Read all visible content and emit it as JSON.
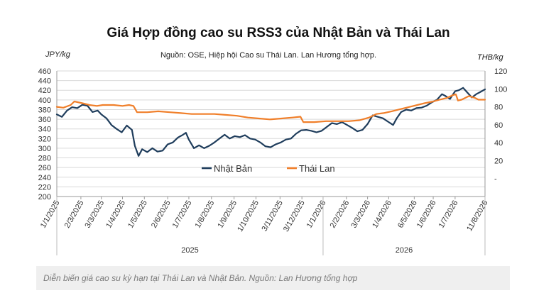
{
  "caption": "Diễn biến giá cao su kỳ hạn tại Thái Lan và Nhật Bản. Nguồn: Lan Hương tổng hợp",
  "chart_data": {
    "type": "line",
    "title": "Giá Hợp đồng cao su RSS3 của Nhật Bản và Thái Lan",
    "subtitle": "Nguồn: OSE, Hiệp hội Cao su Thái Lan. Lan Hương tổng hợp.",
    "ylabel_left": "JPY/kg",
    "ylabel_right": "THB/kg",
    "y_left_range": [
      200,
      460
    ],
    "y_left_ticks": [
      "460",
      "440",
      "420",
      "400",
      "380",
      "360",
      "340",
      "320",
      "300",
      "280",
      "260",
      "240",
      "220",
      "200"
    ],
    "y_right_range": [
      -20,
      120
    ],
    "y_right_ticks": [
      "120",
      "100",
      "80",
      "60",
      "40",
      "20",
      "-"
    ],
    "x_range": [
      "2025-01-01",
      "2026-08-11"
    ],
    "x_ticks": [
      "1/1/2025",
      "2/3/2025",
      "3/3/2025",
      "1/4/2025",
      "1/5/2025",
      "2/6/2025",
      "1/7/2025",
      "1/8/2025",
      "1/9/2025",
      "1/10/2025",
      "3/11/2025",
      "3/12/2025",
      "1/1/2026",
      "2/2/2026",
      "3/3/2026",
      "1/4/2026",
      "6/5/2026",
      "1/6/2026",
      "1/7/2026",
      "11/8/2026"
    ],
    "x_tick_dates": [
      "2025-01-01",
      "2025-02-03",
      "2025-03-03",
      "2025-04-01",
      "2025-05-01",
      "2025-06-02",
      "2025-07-01",
      "2025-08-01",
      "2025-09-01",
      "2025-10-01",
      "2025-11-03",
      "2025-12-03",
      "2026-01-01",
      "2026-02-02",
      "2026-03-03",
      "2026-04-01",
      "2026-05-06",
      "2026-06-01",
      "2026-07-01",
      "2026-08-11"
    ],
    "x_groups": [
      {
        "label": "2025",
        "start": "2025-01-01",
        "end": "2025-12-31"
      },
      {
        "label": "2026",
        "start": "2026-01-01",
        "end": "2026-08-11"
      }
    ],
    "legend_position": "inside-center",
    "series": [
      {
        "name": "Nhật Bản",
        "axis": "left",
        "color": "#1f3d5c",
        "points": [
          [
            "2025-01-01",
            370
          ],
          [
            "2025-01-08",
            365
          ],
          [
            "2025-01-15",
            378
          ],
          [
            "2025-01-22",
            385
          ],
          [
            "2025-01-29",
            383
          ],
          [
            "2025-02-05",
            390
          ],
          [
            "2025-02-12",
            388
          ],
          [
            "2025-02-19",
            375
          ],
          [
            "2025-02-26",
            378
          ],
          [
            "2025-03-03",
            370
          ],
          [
            "2025-03-10",
            362
          ],
          [
            "2025-03-17",
            348
          ],
          [
            "2025-03-24",
            340
          ],
          [
            "2025-03-31",
            333
          ],
          [
            "2025-04-07",
            347
          ],
          [
            "2025-04-14",
            338
          ],
          [
            "2025-04-18",
            305
          ],
          [
            "2025-04-23",
            284
          ],
          [
            "2025-04-28",
            298
          ],
          [
            "2025-05-05",
            292
          ],
          [
            "2025-05-12",
            300
          ],
          [
            "2025-05-19",
            293
          ],
          [
            "2025-05-26",
            295
          ],
          [
            "2025-06-02",
            308
          ],
          [
            "2025-06-09",
            312
          ],
          [
            "2025-06-16",
            322
          ],
          [
            "2025-06-23",
            328
          ],
          [
            "2025-06-27",
            332
          ],
          [
            "2025-07-01",
            318
          ],
          [
            "2025-07-08",
            300
          ],
          [
            "2025-07-15",
            306
          ],
          [
            "2025-07-22",
            300
          ],
          [
            "2025-07-29",
            305
          ],
          [
            "2025-08-05",
            312
          ],
          [
            "2025-08-12",
            320
          ],
          [
            "2025-08-19",
            328
          ],
          [
            "2025-08-26",
            320
          ],
          [
            "2025-09-02",
            325
          ],
          [
            "2025-09-09",
            323
          ],
          [
            "2025-09-16",
            327
          ],
          [
            "2025-09-23",
            320
          ],
          [
            "2025-09-30",
            318
          ],
          [
            "2025-10-07",
            312
          ],
          [
            "2025-10-14",
            304
          ],
          [
            "2025-10-21",
            302
          ],
          [
            "2025-10-28",
            308
          ],
          [
            "2025-11-04",
            312
          ],
          [
            "2025-11-11",
            318
          ],
          [
            "2025-11-18",
            320
          ],
          [
            "2025-11-25",
            330
          ],
          [
            "2025-12-02",
            337
          ],
          [
            "2025-12-09",
            338
          ],
          [
            "2025-12-16",
            336
          ],
          [
            "2025-12-23",
            333
          ],
          [
            "2025-12-30",
            336
          ],
          [
            "2026-01-06",
            344
          ],
          [
            "2026-01-13",
            352
          ],
          [
            "2026-01-20",
            350
          ],
          [
            "2026-01-27",
            354
          ],
          [
            "2026-02-03",
            348
          ],
          [
            "2026-02-10",
            342
          ],
          [
            "2026-02-17",
            335
          ],
          [
            "2026-02-24",
            338
          ],
          [
            "2026-03-03",
            350
          ],
          [
            "2026-03-10",
            368
          ],
          [
            "2026-03-17",
            365
          ],
          [
            "2026-03-24",
            362
          ],
          [
            "2026-03-31",
            355
          ],
          [
            "2026-04-07",
            348
          ],
          [
            "2026-04-12",
            362
          ],
          [
            "2026-04-18",
            375
          ],
          [
            "2026-04-25",
            380
          ],
          [
            "2026-05-02",
            378
          ],
          [
            "2026-05-09",
            383
          ],
          [
            "2026-05-16",
            384
          ],
          [
            "2026-05-23",
            388
          ],
          [
            "2026-05-30",
            395
          ],
          [
            "2026-06-06",
            400
          ],
          [
            "2026-06-13",
            412
          ],
          [
            "2026-06-18",
            408
          ],
          [
            "2026-06-24",
            402
          ],
          [
            "2026-07-01",
            418
          ],
          [
            "2026-07-06",
            420
          ],
          [
            "2026-07-12",
            425
          ],
          [
            "2026-07-18",
            415
          ],
          [
            "2026-07-24",
            405
          ],
          [
            "2026-07-30",
            412
          ],
          [
            "2026-08-04",
            416
          ],
          [
            "2026-08-11",
            422
          ]
        ]
      },
      {
        "name": "Thái Lan",
        "axis": "right",
        "color": "#f07f2a",
        "points": [
          [
            "2025-01-01",
            80
          ],
          [
            "2025-01-10",
            79
          ],
          [
            "2025-01-20",
            82
          ],
          [
            "2025-01-25",
            86
          ],
          [
            "2025-02-05",
            84
          ],
          [
            "2025-02-15",
            82
          ],
          [
            "2025-02-25",
            81
          ],
          [
            "2025-03-05",
            82
          ],
          [
            "2025-03-20",
            82
          ],
          [
            "2025-04-01",
            81
          ],
          [
            "2025-04-10",
            82
          ],
          [
            "2025-04-16",
            81
          ],
          [
            "2025-04-21",
            74
          ],
          [
            "2025-05-05",
            74
          ],
          [
            "2025-05-20",
            75
          ],
          [
            "2025-06-05",
            74
          ],
          [
            "2025-06-20",
            73
          ],
          [
            "2025-07-05",
            72
          ],
          [
            "2025-07-20",
            72
          ],
          [
            "2025-08-05",
            72
          ],
          [
            "2025-08-20",
            71
          ],
          [
            "2025-09-05",
            70
          ],
          [
            "2025-09-20",
            68
          ],
          [
            "2025-10-05",
            67
          ],
          [
            "2025-10-20",
            66
          ],
          [
            "2025-11-05",
            67
          ],
          [
            "2025-11-20",
            68
          ],
          [
            "2025-12-01",
            69
          ],
          [
            "2025-12-05",
            63
          ],
          [
            "2025-12-20",
            63
          ],
          [
            "2026-01-05",
            64
          ],
          [
            "2026-01-20",
            64
          ],
          [
            "2026-02-05",
            64
          ],
          [
            "2026-02-20",
            65
          ],
          [
            "2026-03-05",
            68
          ],
          [
            "2026-03-15",
            72
          ],
          [
            "2026-03-25",
            73
          ],
          [
            "2026-04-05",
            75
          ],
          [
            "2026-04-20",
            78
          ],
          [
            "2026-05-05",
            81
          ],
          [
            "2026-05-20",
            84
          ],
          [
            "2026-06-01",
            86
          ],
          [
            "2026-06-10",
            88
          ],
          [
            "2026-06-20",
            90
          ],
          [
            "2026-06-28",
            93
          ],
          [
            "2026-07-02",
            94
          ],
          [
            "2026-07-05",
            87
          ],
          [
            "2026-07-10",
            88
          ],
          [
            "2026-07-20",
            92
          ],
          [
            "2026-07-28",
            90
          ],
          [
            "2026-08-02",
            88
          ],
          [
            "2026-08-11",
            88
          ]
        ]
      }
    ]
  }
}
